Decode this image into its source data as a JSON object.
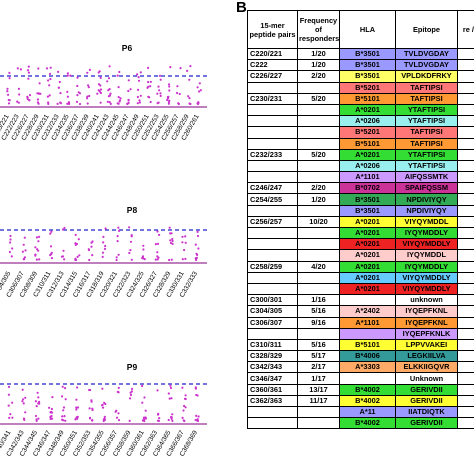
{
  "panel_a": {
    "panels": [
      {
        "label": "P6",
        "x_labels": [
          "C220/221",
          "C222/223",
          "C226/227",
          "C228/229",
          "C230/231",
          "C232/233",
          "C234/235",
          "C236/237",
          "C238/239",
          "C240/241",
          "C242/243",
          "C244/245",
          "C246/247",
          "C248/249",
          "C250/251",
          "C252/253",
          "C254/255",
          "C256/257",
          "C258/259",
          "C260/261"
        ]
      },
      {
        "label": "P8",
        "x_labels": [
          "C304/305",
          "C306/307",
          "C308/309",
          "C310/311",
          "C312/313",
          "C314/315",
          "C316/317",
          "C318/319",
          "C320/321",
          "C322/323",
          "C324/325",
          "C326/327",
          "C328/329",
          "C330/331",
          "C332/333"
        ]
      },
      {
        "label": "P9",
        "x_labels": [
          "C340/341",
          "C342/343",
          "C344/345",
          "C346/347",
          "C348/349",
          "C350/351",
          "C352/353",
          "C354/355",
          "C356/357",
          "C358/359",
          "C360/361",
          "C362/363",
          "C364/365",
          "C366/367",
          "C368/369"
        ]
      }
    ],
    "colors": {
      "dots": "#cc33cc",
      "threshold": "#2222cc",
      "baseline": "#993399"
    }
  },
  "panel_b": {
    "label": "B",
    "headers": {
      "pairs": "15-mer peptide pairs",
      "freq": "Frequency of responders",
      "hla": "HLA",
      "epitope": "Epitope",
      "extra": "re /all"
    },
    "rows": [
      {
        "pep": "C220/221",
        "freq": "1/20",
        "hla": "B*3501",
        "epi": "TVLDVGDAY",
        "hc": "#9999ff",
        "ec": "#9999ff"
      },
      {
        "pep": "C222",
        "freq": "1/20",
        "hla": "B*3501",
        "epi": "TVLDVGDAY",
        "hc": "#9999ff",
        "ec": "#9999ff"
      },
      {
        "pep": "C226/227",
        "freq": "2/20",
        "hla": "B*3501",
        "epi": "VPLDKDFRKY",
        "hc": "#ffff66",
        "ec": "#ffff66"
      },
      {
        "pep": "",
        "freq": "",
        "hla": "B*5201",
        "epi": "TAFTIPSI",
        "hc": "#ff7777",
        "ec": "#ff7777"
      },
      {
        "pep": "C230/231",
        "freq": "5/20",
        "hla": "B*5101",
        "epi": "TAFTIPSI",
        "hc": "#ff9933",
        "ec": "#ff9933"
      },
      {
        "pep": "",
        "freq": "",
        "hla": "A*0201",
        "epi": "YTAFTIPSI",
        "hc": "#33dd33",
        "ec": "#33dd33"
      },
      {
        "pep": "",
        "freq": "",
        "hla": "A*0206",
        "epi": "YTAFTIPSI",
        "hc": "#99eeee",
        "ec": "#99eeee"
      },
      {
        "pep": "",
        "freq": "",
        "hla": "B*5201",
        "epi": "TAFTIPSI",
        "hc": "#ff7777",
        "ec": "#ff7777"
      },
      {
        "pep": "",
        "freq": "",
        "hla": "B*5101",
        "epi": "TAFTIPSI",
        "hc": "#ff9933",
        "ec": "#ff9933"
      },
      {
        "pep": "C232/233",
        "freq": "5/20",
        "hla": "A*0201",
        "epi": "YTAFTIPSI",
        "hc": "#33dd33",
        "ec": "#33dd33"
      },
      {
        "pep": "",
        "freq": "",
        "hla": "A*0206",
        "epi": "YTAFTIPSI",
        "hc": "#99eeee",
        "ec": "#99eeee"
      },
      {
        "pep": "",
        "freq": "",
        "hla": "A*1101",
        "epi": "AIFQSSMTK",
        "hc": "#cc99ff",
        "ec": "#cc99ff"
      },
      {
        "pep": "C246/247",
        "freq": "2/20",
        "hla": "B*0702",
        "epi": "SPAIFQSSM",
        "hc": "#cc3399",
        "ec": "#cc3399"
      },
      {
        "pep": "C254/255",
        "freq": "1/20",
        "hla": "B*3501",
        "epi": "NPDIVIYQY",
        "hc": "#33aa55",
        "ec": "#33aa55"
      },
      {
        "pep": "",
        "freq": "",
        "hla": "B*3501",
        "epi": "NPDIVIYQY",
        "hc": "#9999ff",
        "ec": "#9999ff"
      },
      {
        "pep": "C256/257",
        "freq": "10/20",
        "hla": "A*0201",
        "epi": "VIYQYMDDL",
        "hc": "#ffff33",
        "ec": "#ffff33"
      },
      {
        "pep": "",
        "freq": "",
        "hla": "A*0201",
        "epi": "IYQYMDDLY",
        "hc": "#33dd33",
        "ec": "#33dd33"
      },
      {
        "pep": "",
        "freq": "",
        "hla": "A*0201",
        "epi": "VIYQYMDDLY",
        "hc": "#ee2222",
        "ec": "#ee2222"
      },
      {
        "pep": "",
        "freq": "",
        "hla": "A*0201",
        "epi": "IYQYMDDL",
        "hc": "#ffcccc",
        "ec": "#ffcccc"
      },
      {
        "pep": "C258/259",
        "freq": "4/20",
        "hla": "A*0201",
        "epi": "IYQYMDDLY",
        "hc": "#33dd33",
        "ec": "#33dd33"
      },
      {
        "pep": "",
        "freq": "",
        "hla": "A*0201",
        "epi": "VIYQYMDDLY",
        "hc": "#66ccff",
        "ec": "#66ccff"
      },
      {
        "pep": "",
        "freq": "",
        "hla": "A*0201",
        "epi": "VIYQYMDDLY",
        "hc": "#ee2222",
        "ec": "#ee2222"
      },
      {
        "pep": "C300/301",
        "freq": "1/16",
        "hla": "",
        "epi": "unknown",
        "hc": "#ffffff",
        "ec": "#ffffff"
      },
      {
        "pep": "C304/305",
        "freq": "5/16",
        "hla": "A*2402",
        "epi": "IYQEPFKNL",
        "hc": "#ffcccc",
        "ec": "#ffcccc"
      },
      {
        "pep": "C306/307",
        "freq": "9/16",
        "hla": "A*1101",
        "epi": "IYQEPFKNL",
        "hc": "#ff9933",
        "ec": "#ff9933"
      },
      {
        "pep": "",
        "freq": "",
        "hla": "",
        "epi": "IYQEPFKNLK",
        "hc": "#cc99ff",
        "ec": "#cc99ff"
      },
      {
        "pep": "C310/311",
        "freq": "5/16",
        "hla": "B*5101",
        "epi": "LPPVVAKEI",
        "hc": "#ffff33",
        "ec": "#ffff33"
      },
      {
        "pep": "C328/329",
        "freq": "5/17",
        "hla": "B*4006",
        "epi": "LEGKIILVA",
        "hc": "#339999",
        "ec": "#339999"
      },
      {
        "pep": "C342/343",
        "freq": "2/17",
        "hla": "A*3303",
        "epi": "ELKKIIGQVR",
        "hc": "#ffaa66",
        "ec": "#ffaa66"
      },
      {
        "pep": "C346/347",
        "freq": "1/17",
        "hla": "",
        "epi": "Unknown",
        "hc": "#ffffff",
        "ec": "#ffffff"
      },
      {
        "pep": "C360/361",
        "freq": "13/17",
        "hla": "B*4002",
        "epi": "GERIVDII",
        "hc": "#33dd33",
        "ec": "#33dd33"
      },
      {
        "pep": "C362/363",
        "freq": "11/17",
        "hla": "B*4002",
        "epi": "GERIVDII",
        "hc": "#ffff33",
        "ec": "#ffff33"
      },
      {
        "pep": "",
        "freq": "",
        "hla": "A*11",
        "epi": "IIATDIQTK",
        "hc": "#9999ff",
        "ec": "#9999ff"
      },
      {
        "pep": "",
        "freq": "",
        "hla": "B*4002",
        "epi": "GERIVDII",
        "hc": "#33dd33",
        "ec": "#33dd33"
      }
    ]
  }
}
